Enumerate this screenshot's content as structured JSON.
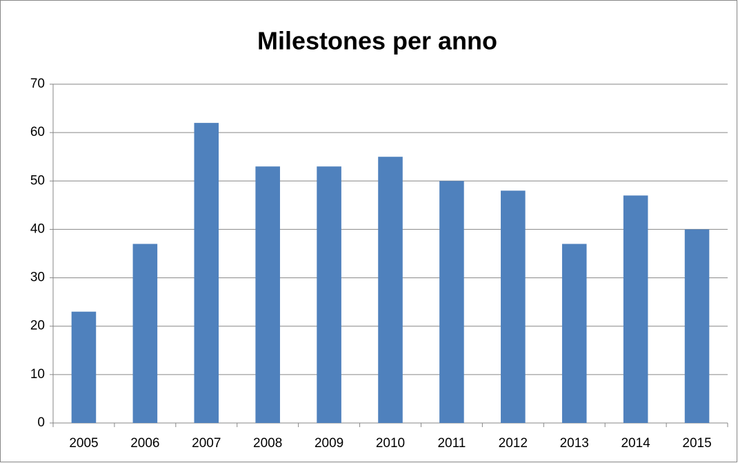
{
  "chart_data": {
    "type": "bar",
    "title": "Milestones per anno",
    "categories": [
      "2005",
      "2006",
      "2007",
      "2008",
      "2009",
      "2010",
      "2011",
      "2012",
      "2013",
      "2014",
      "2015"
    ],
    "values": [
      23,
      37,
      62,
      53,
      53,
      55,
      50,
      48,
      37,
      47,
      40
    ],
    "color": "#4f81bd",
    "ylim": [
      0,
      70
    ],
    "yticks": [
      0,
      10,
      20,
      30,
      40,
      50,
      60,
      70
    ],
    "grid": true
  }
}
